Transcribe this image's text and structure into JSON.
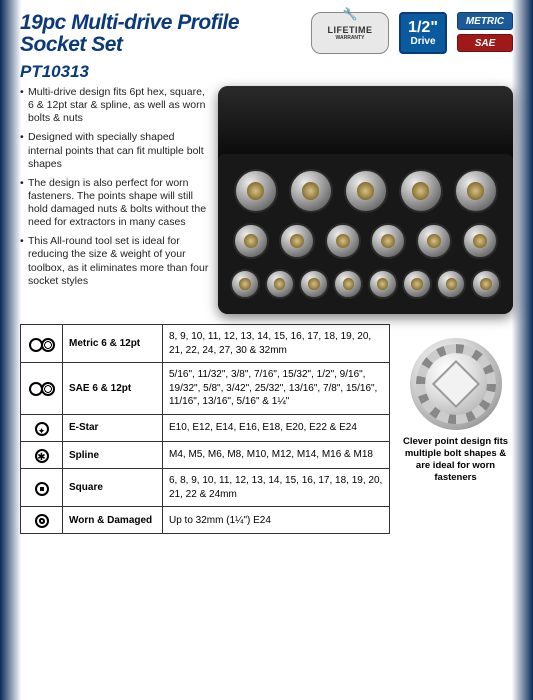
{
  "title_line1": "19pc Multi-drive Profile",
  "title_line2": "Socket Set",
  "sku": "PT10313",
  "warranty_text": "LIFETIME",
  "warranty_sub": "WARRANTY",
  "drive_size": "1/2\"",
  "drive_label": "Drive",
  "tag_metric": "METRIC",
  "tag_sae": "SAE",
  "bullets": [
    "Multi-drive design fits 6pt hex, square, 6 & 12pt star & spline, as well as worn bolts & nuts",
    "Designed with specially shaped internal points that can fit multiple bolt shapes",
    "The design is also perfect for worn fasteners. The points shape will still hold damaged nuts & bolts without the need for extractors in many cases",
    "This All-round tool set is ideal for reducing the size & weight of your toolbox, as it eliminates more than four socket styles"
  ],
  "socket_rows": [
    5,
    6,
    8
  ],
  "table": [
    {
      "icon": "double-ring",
      "label": "Metric 6 & 12pt",
      "value": "8, 9, 10, 11, 12, 13, 14, 15, 16, 17, 18, 19, 20, 21, 22, 24, 27, 30 & 32mm"
    },
    {
      "icon": "double-ring",
      "label": "SAE 6 & 12pt",
      "value": "5/16\", 11/32\", 3/8\", 7/16\", 15/32\", 1/2\", 9/16\", 19/32\", 5/8\", 3/42\", 25/32\", 13/16\", 7/8\", 15/16\", 11/16\", 13/16\", 5/16\" & 1¼\""
    },
    {
      "icon": "star",
      "label": "E-Star",
      "value": "E10, E12, E14, E16, E18, E20, E22 & E24"
    },
    {
      "icon": "spline",
      "label": "Spline",
      "value": "M4, M5, M6, M8, M10, M12, M14, M16 & M18"
    },
    {
      "icon": "square",
      "label": "Square",
      "value": "6, 8, 9, 10, 11, 12, 13, 14, 15, 16, 17, 18, 19, 20, 21, 22 & 24mm"
    },
    {
      "icon": "worn",
      "label": "Worn & Damaged",
      "value": "Up to 32mm (1¼\") E24"
    }
  ],
  "diagram_caption": "Clever point design fits multiple bolt shapes & are ideal for worn fasteners",
  "colors": {
    "brand_blue": "#0a3a7a",
    "drive_blue": "#0a5aa0",
    "sae_red": "#a01818",
    "text": "#222222",
    "border": "#333333"
  }
}
